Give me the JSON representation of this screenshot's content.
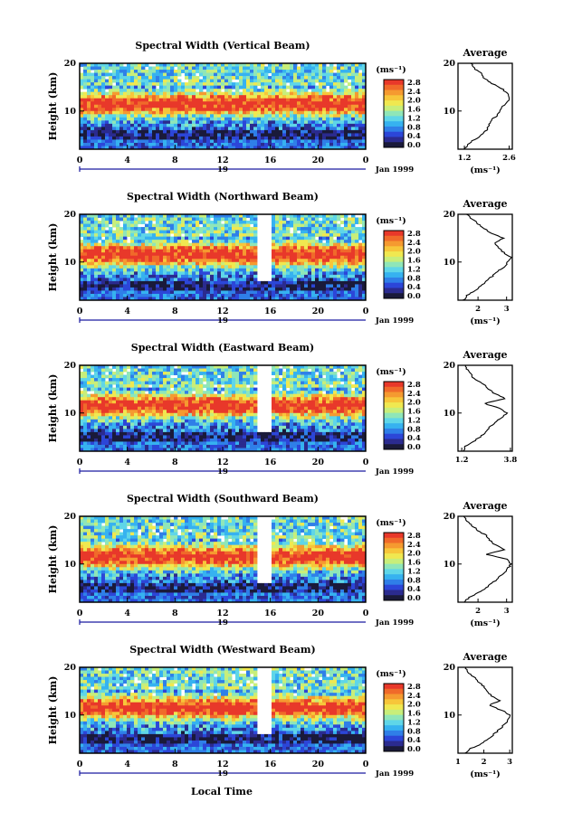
{
  "figure": {
    "xlabel": "Local Time",
    "date_label": "Jan 1999",
    "day_label": "19",
    "unit_label": "(ms⁻¹)"
  },
  "colors": {
    "colormap": [
      "#1a1a3a",
      "#2b2b8f",
      "#2c46d8",
      "#2f7fe8",
      "#36b2f0",
      "#5fd6e8",
      "#8fe6b8",
      "#c8ee7a",
      "#f0e850",
      "#f7c63a",
      "#f59a30",
      "#f06a2a",
      "#e8382a"
    ],
    "panel_bg": "#5fcde6",
    "frame": "#000000",
    "white_gap": "#ffffff"
  },
  "chart_data": [
    {
      "type": "heatmap",
      "title": "Spectral Width (Vertical Beam)",
      "ylabel": "Height (km)",
      "x_ticks": [
        "0",
        "4",
        "8",
        "12",
        "16",
        "20",
        "0"
      ],
      "y_ticks": [
        "10",
        "20"
      ],
      "xlim": [
        0,
        24
      ],
      "ylim": [
        2,
        20
      ],
      "colorbar": {
        "label": "(ms⁻¹)",
        "ticks": [
          "2.8",
          "2.4",
          "2.0",
          "1.6",
          "1.2",
          "0.8",
          "0.4",
          "0.0"
        ],
        "range": [
          0,
          2.8
        ]
      },
      "average": {
        "title": "Average",
        "xlabel": "(ms⁻¹)",
        "x_ticks": [
          "1.2",
          "2.6"
        ],
        "y_ticks": [
          "10",
          "20"
        ],
        "xlim": [
          1.0,
          2.7
        ],
        "profile": [
          [
            2,
            1.2
          ],
          [
            3,
            1.3
          ],
          [
            4,
            1.5
          ],
          [
            5,
            1.75
          ],
          [
            6,
            1.9
          ],
          [
            7,
            1.95
          ],
          [
            8,
            2.05
          ],
          [
            9,
            2.2
          ],
          [
            10,
            2.3
          ],
          [
            11,
            2.4
          ],
          [
            12,
            2.55
          ],
          [
            13,
            2.6
          ],
          [
            14,
            2.5
          ],
          [
            15,
            2.3
          ],
          [
            16,
            2.0
          ],
          [
            17,
            1.8
          ],
          [
            18,
            1.7
          ],
          [
            19,
            1.5
          ],
          [
            20,
            1.4
          ]
        ]
      }
    },
    {
      "type": "heatmap",
      "title": "Spectral Width (Northward Beam)",
      "ylabel": "Height (km)",
      "x_ticks": [
        "0",
        "4",
        "8",
        "12",
        "16",
        "20",
        "0"
      ],
      "y_ticks": [
        "10",
        "20"
      ],
      "xlim": [
        0,
        24
      ],
      "ylim": [
        2,
        20
      ],
      "colorbar": {
        "label": "(ms⁻¹)",
        "ticks": [
          "2.8",
          "2.4",
          "2.0",
          "1.6",
          "1.2",
          "0.8",
          "0.4",
          "0.0"
        ],
        "range": [
          0,
          2.8
        ]
      },
      "average": {
        "title": "Average",
        "xlabel": "(ms⁻¹)",
        "x_ticks": [
          "2",
          "3"
        ],
        "y_ticks": [
          "10",
          "20"
        ],
        "xlim": [
          1.3,
          3.2
        ],
        "profile": [
          [
            2,
            1.5
          ],
          [
            3,
            1.6
          ],
          [
            4,
            1.9
          ],
          [
            5,
            2.1
          ],
          [
            6,
            2.3
          ],
          [
            7,
            2.5
          ],
          [
            8,
            2.7
          ],
          [
            9,
            2.9
          ],
          [
            10,
            3.05
          ],
          [
            11,
            3.15
          ],
          [
            12,
            2.9
          ],
          [
            13,
            2.7
          ],
          [
            14,
            2.6
          ],
          [
            15,
            2.9
          ],
          [
            16,
            2.5
          ],
          [
            17,
            2.2
          ],
          [
            18,
            2.0
          ],
          [
            19,
            1.8
          ],
          [
            20,
            1.6
          ]
        ]
      }
    },
    {
      "type": "heatmap",
      "title": "Spectral Width (Eastward Beam)",
      "ylabel": "Height (km)",
      "x_ticks": [
        "0",
        "4",
        "8",
        "12",
        "16",
        "20",
        "0"
      ],
      "y_ticks": [
        "10",
        "20"
      ],
      "xlim": [
        0,
        24
      ],
      "ylim": [
        2,
        20
      ],
      "colorbar": {
        "label": "(ms⁻¹)",
        "ticks": [
          "2.8",
          "2.4",
          "2.0",
          "1.6",
          "1.2",
          "0.8",
          "0.4",
          "0.0"
        ],
        "range": [
          0,
          2.8
        ]
      },
      "average": {
        "title": "Average",
        "xlabel": "",
        "x_ticks": [
          "1.2",
          "3.8"
        ],
        "y_ticks": [
          "10",
          "20"
        ],
        "xlim": [
          1.0,
          3.9
        ],
        "profile": [
          [
            2,
            1.3
          ],
          [
            3,
            1.4
          ],
          [
            4,
            1.8
          ],
          [
            5,
            2.2
          ],
          [
            6,
            2.5
          ],
          [
            7,
            2.7
          ],
          [
            8,
            3.0
          ],
          [
            9,
            3.3
          ],
          [
            10,
            3.6
          ],
          [
            11,
            3.2
          ],
          [
            12,
            2.4
          ],
          [
            13,
            3.5
          ],
          [
            14,
            3.0
          ],
          [
            15,
            2.6
          ],
          [
            16,
            2.4
          ],
          [
            17,
            1.9
          ],
          [
            18,
            1.7
          ],
          [
            19,
            1.5
          ],
          [
            20,
            1.4
          ]
        ]
      }
    },
    {
      "type": "heatmap",
      "title": "Spectral Width (Southward Beam)",
      "ylabel": "Height (km)",
      "x_ticks": [
        "0",
        "4",
        "8",
        "12",
        "16",
        "20",
        "0"
      ],
      "y_ticks": [
        "10",
        "20"
      ],
      "xlim": [
        0,
        24
      ],
      "ylim": [
        2,
        20
      ],
      "colorbar": {
        "label": "(ms⁻¹)",
        "ticks": [
          "2.8",
          "2.4",
          "2.0",
          "1.6",
          "1.2",
          "0.8",
          "0.4",
          "0.0"
        ],
        "range": [
          0,
          2.8
        ]
      },
      "average": {
        "title": "Average",
        "xlabel": "(ms⁻¹)",
        "x_ticks": [
          "2",
          "3"
        ],
        "y_ticks": [
          "10",
          "20"
        ],
        "xlim": [
          1.3,
          3.2
        ],
        "profile": [
          [
            2,
            1.5
          ],
          [
            3,
            1.7
          ],
          [
            4,
            2.0
          ],
          [
            5,
            2.3
          ],
          [
            6,
            2.5
          ],
          [
            7,
            2.7
          ],
          [
            8,
            2.9
          ],
          [
            9,
            3.05
          ],
          [
            10,
            3.15
          ],
          [
            11,
            3.0
          ],
          [
            12,
            2.3
          ],
          [
            13,
            2.9
          ],
          [
            14,
            2.6
          ],
          [
            15,
            2.4
          ],
          [
            16,
            2.3
          ],
          [
            17,
            2.0
          ],
          [
            18,
            1.8
          ],
          [
            19,
            1.6
          ],
          [
            20,
            1.5
          ]
        ]
      }
    },
    {
      "type": "heatmap",
      "title": "Spectral Width (Westward Beam)",
      "ylabel": "Height (km)",
      "x_ticks": [
        "0",
        "4",
        "8",
        "12",
        "16",
        "20",
        "0"
      ],
      "y_ticks": [
        "10",
        "20"
      ],
      "xlim": [
        0,
        24
      ],
      "ylim": [
        2,
        20
      ],
      "colorbar": {
        "label": "(ms⁻¹)",
        "ticks": [
          "2.8",
          "2.4",
          "2.0",
          "1.6",
          "1.2",
          "0.8",
          "0.4",
          "0.0"
        ],
        "range": [
          0,
          2.8
        ]
      },
      "average": {
        "title": "Average",
        "xlabel": "(ms⁻¹)",
        "x_ticks": [
          "1",
          "2",
          "3"
        ],
        "y_ticks": [
          "10",
          "20"
        ],
        "xlim": [
          1.0,
          3.1
        ],
        "profile": [
          [
            2,
            1.3
          ],
          [
            3,
            1.5
          ],
          [
            4,
            1.9
          ],
          [
            5,
            2.2
          ],
          [
            6,
            2.4
          ],
          [
            7,
            2.6
          ],
          [
            8,
            2.8
          ],
          [
            9,
            2.95
          ],
          [
            10,
            3.0
          ],
          [
            11,
            2.7
          ],
          [
            12,
            2.2
          ],
          [
            13,
            2.6
          ],
          [
            14,
            2.3
          ],
          [
            15,
            2.1
          ],
          [
            16,
            2.0
          ],
          [
            17,
            1.8
          ],
          [
            18,
            1.6
          ],
          [
            19,
            1.4
          ],
          [
            20,
            1.3
          ]
        ]
      }
    }
  ]
}
